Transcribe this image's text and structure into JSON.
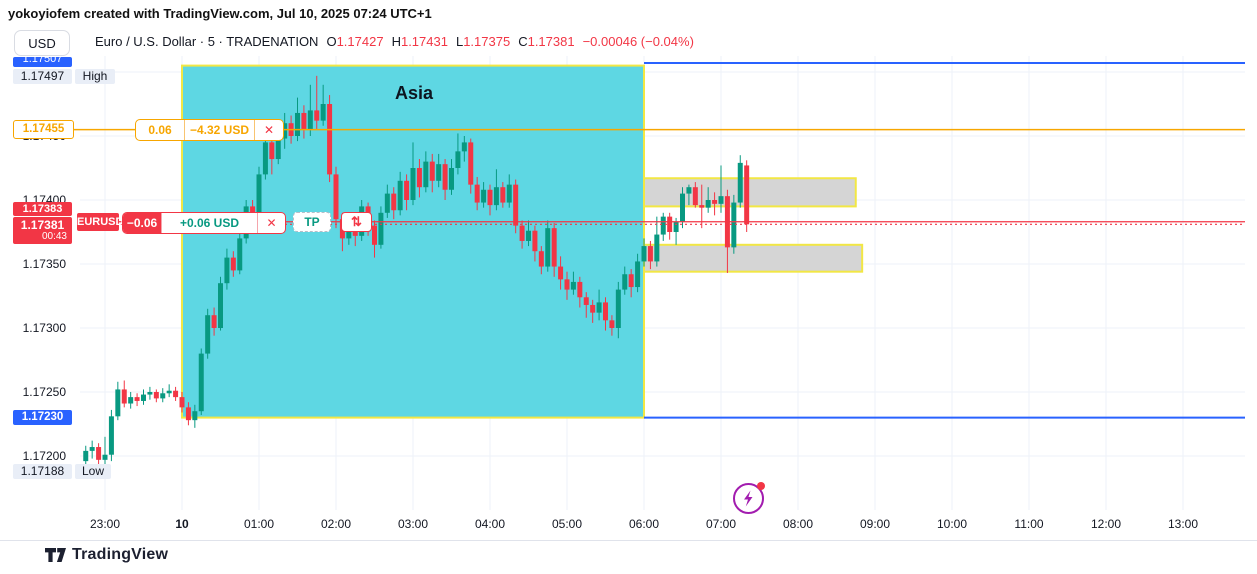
{
  "attribution": "yokoyiofem created with TradingView.com, Jul 10, 2025 07:24 UTC+1",
  "toolbar": {
    "currency_label": "USD"
  },
  "legend": {
    "title": "Euro / U.S. Dollar · 5 · TRADENATION",
    "ohlc": [
      {
        "label": "O",
        "value": "1.17427"
      },
      {
        "label": "H",
        "value": "1.17431"
      },
      {
        "label": "L",
        "value": "1.17375"
      },
      {
        "label": "C",
        "value": "1.17381"
      }
    ],
    "change": "−0.00046 (−0.04%)"
  },
  "price_axis": {
    "labels": [
      {
        "text": "1.17450",
        "price": 1.1745
      },
      {
        "text": "1.17400",
        "price": 1.174
      },
      {
        "text": "1.17350",
        "price": 1.1735
      },
      {
        "text": "1.17300",
        "price": 1.173
      },
      {
        "text": "1.17250",
        "price": 1.1725
      },
      {
        "text": "1.17200",
        "price": 1.172
      }
    ],
    "range_top_badge": "1.17507",
    "high_badge": {
      "price": "1.17497",
      "tag": "High"
    },
    "alert_badge": "1.17455",
    "entry_badge": "1.17383",
    "last_badge": {
      "price": "1.17381",
      "countdown": "00:43"
    },
    "range_bottom_badge": "1.17230",
    "low_badge": {
      "price": "1.17188",
      "tag": "Low"
    }
  },
  "time_axis": {
    "labels": [
      "23:00",
      "10",
      "01:00",
      "02:00",
      "03:00",
      "04:00",
      "05:00",
      "06:00",
      "07:00",
      "08:00",
      "09:00",
      "10:00",
      "11:00",
      "12:00",
      "13:00"
    ]
  },
  "position_tool": {
    "alert_row": {
      "qty": "0.06",
      "pnl": "−4.32 USD",
      "close": "✕",
      "price": 1.17455
    },
    "position_row": {
      "symbol": "EURUSD",
      "qty": "−0.06",
      "pnl": "+0.06 USD",
      "close": "✕",
      "tp_label": "TP",
      "reverse_icon": "⇅",
      "entry_price": 1.17383,
      "last_price": 1.17381
    }
  },
  "drawings": {
    "session_box": {
      "label": "Asia",
      "time_start": "00:00",
      "time_end": "06:00",
      "price_top": 1.17505,
      "price_bottom": 1.1723
    },
    "range_lines": {
      "top_price": 1.17507,
      "bottom_price": 1.1723,
      "time_start": "06:00",
      "time_end": "13:50"
    },
    "zones": [
      {
        "price_top": 1.17417,
        "price_bottom": 1.17395,
        "time_start": "06:00",
        "time_end": "08:45"
      },
      {
        "price_top": 1.17365,
        "price_bottom": 1.17344,
        "time_start": "06:00",
        "time_end": "08:50"
      }
    ]
  },
  "footer": {
    "logo_text": "TradingView"
  },
  "colors": {
    "up": "#089981",
    "down": "#F23645",
    "accent_blue": "#2962FF",
    "orange": "#F7A600",
    "session_fill": "#5ED7E3",
    "zone_border": "#F2E744",
    "gray_zone_fill": "#D5D5D5",
    "grid": "#EEF2F8",
    "magic_purple": "#A21CAF"
  },
  "chart_data": {
    "type": "candlestick",
    "title": "Euro / U.S. Dollar",
    "symbol": "EURUSD",
    "interval_minutes": 5,
    "start_time": "22:45",
    "session_high": 1.17497,
    "session_low": 1.17188,
    "y_axis_range": [
      1.1717,
      1.1752
    ],
    "x_axis_labels": [
      "23:00",
      "10",
      "01:00",
      "02:00",
      "03:00",
      "04:00",
      "05:00",
      "06:00",
      "07:00",
      "08:00",
      "09:00",
      "10:00",
      "11:00",
      "12:00",
      "13:00"
    ],
    "ohlc": [
      [
        1.17196,
        1.17208,
        1.1719,
        1.17204
      ],
      [
        1.17204,
        1.17212,
        1.17198,
        1.17207
      ],
      [
        1.17207,
        1.1721,
        1.17188,
        1.17197
      ],
      [
        1.17197,
        1.17215,
        1.17193,
        1.17201
      ],
      [
        1.17201,
        1.17236,
        1.17196,
        1.17231
      ],
      [
        1.17231,
        1.17258,
        1.17228,
        1.17252
      ],
      [
        1.17252,
        1.17259,
        1.17238,
        1.17241
      ],
      [
        1.17241,
        1.1725,
        1.17237,
        1.17246
      ],
      [
        1.17246,
        1.17249,
        1.17239,
        1.17243
      ],
      [
        1.17243,
        1.17252,
        1.1724,
        1.17248
      ],
      [
        1.17248,
        1.17254,
        1.17244,
        1.1725
      ],
      [
        1.1725,
        1.17252,
        1.17242,
        1.17245
      ],
      [
        1.17245,
        1.17253,
        1.17242,
        1.17249
      ],
      [
        1.17249,
        1.17256,
        1.17246,
        1.17251
      ],
      [
        1.17251,
        1.17254,
        1.17243,
        1.17246
      ],
      [
        1.17246,
        1.1725,
        1.17234,
        1.17238
      ],
      [
        1.17238,
        1.17242,
        1.17224,
        1.17228
      ],
      [
        1.17228,
        1.1724,
        1.17222,
        1.17235
      ],
      [
        1.17235,
        1.17284,
        1.17232,
        1.1728
      ],
      [
        1.1728,
        1.17315,
        1.17276,
        1.1731
      ],
      [
        1.1731,
        1.17316,
        1.17294,
        1.173
      ],
      [
        1.173,
        1.1734,
        1.17298,
        1.17335
      ],
      [
        1.17335,
        1.17362,
        1.1733,
        1.17355
      ],
      [
        1.17355,
        1.1736,
        1.1734,
        1.17345
      ],
      [
        1.17345,
        1.17376,
        1.17342,
        1.1737
      ],
      [
        1.1737,
        1.174,
        1.17366,
        1.17395
      ],
      [
        1.17395,
        1.174,
        1.17378,
        1.17385
      ],
      [
        1.17385,
        1.17426,
        1.17382,
        1.1742
      ],
      [
        1.1742,
        1.17452,
        1.17416,
        1.17445
      ],
      [
        1.17445,
        1.1745,
        1.1742,
        1.17432
      ],
      [
        1.17432,
        1.17455,
        1.17428,
        1.17448
      ],
      [
        1.17448,
        1.17468,
        1.1744,
        1.1746
      ],
      [
        1.1746,
        1.17466,
        1.17444,
        1.1745
      ],
      [
        1.1745,
        1.1748,
        1.17446,
        1.17468
      ],
      [
        1.17468,
        1.17474,
        1.17448,
        1.17455
      ],
      [
        1.17455,
        1.1749,
        1.1745,
        1.1747
      ],
      [
        1.1747,
        1.17497,
        1.17455,
        1.17462
      ],
      [
        1.17462,
        1.1749,
        1.17458,
        1.17475
      ],
      [
        1.17475,
        1.17482,
        1.17414,
        1.1742
      ],
      [
        1.1742,
        1.17426,
        1.17378,
        1.17385
      ],
      [
        1.17385,
        1.1739,
        1.1736,
        1.1737
      ],
      [
        1.1737,
        1.17388,
        1.17365,
        1.17382
      ],
      [
        1.17382,
        1.17386,
        1.17364,
        1.17372
      ],
      [
        1.17372,
        1.174,
        1.17368,
        1.17395
      ],
      [
        1.17395,
        1.17398,
        1.17372,
        1.1738
      ],
      [
        1.1738,
        1.17384,
        1.17355,
        1.17365
      ],
      [
        1.17365,
        1.17395,
        1.17362,
        1.1739
      ],
      [
        1.1739,
        1.17412,
        1.17386,
        1.17405
      ],
      [
        1.17405,
        1.1741,
        1.17385,
        1.17392
      ],
      [
        1.17392,
        1.17422,
        1.17388,
        1.17415
      ],
      [
        1.17415,
        1.1742,
        1.17392,
        1.174
      ],
      [
        1.174,
        1.17445,
        1.17396,
        1.17425
      ],
      [
        1.17425,
        1.17432,
        1.17402,
        1.1741
      ],
      [
        1.1741,
        1.17438,
        1.17406,
        1.1743
      ],
      [
        1.1743,
        1.17436,
        1.17406,
        1.17415
      ],
      [
        1.17415,
        1.17436,
        1.1741,
        1.17428
      ],
      [
        1.17428,
        1.17432,
        1.174,
        1.17408
      ],
      [
        1.17408,
        1.17432,
        1.17404,
        1.17425
      ],
      [
        1.17425,
        1.17452,
        1.1742,
        1.17438
      ],
      [
        1.17438,
        1.1745,
        1.1743,
        1.17445
      ],
      [
        1.17445,
        1.17448,
        1.17405,
        1.17412
      ],
      [
        1.17412,
        1.17418,
        1.17392,
        1.17398
      ],
      [
        1.17398,
        1.17414,
        1.17394,
        1.17408
      ],
      [
        1.17408,
        1.17412,
        1.17388,
        1.17396
      ],
      [
        1.17396,
        1.17424,
        1.17392,
        1.1741
      ],
      [
        1.1741,
        1.17414,
        1.17394,
        1.17398
      ],
      [
        1.17398,
        1.1742,
        1.17394,
        1.17412
      ],
      [
        1.17412,
        1.17416,
        1.17374,
        1.1738
      ],
      [
        1.1738,
        1.17384,
        1.17362,
        1.17368
      ],
      [
        1.17368,
        1.17384,
        1.17364,
        1.17376
      ],
      [
        1.17376,
        1.1738,
        1.17352,
        1.1736
      ],
      [
        1.1736,
        1.17364,
        1.17342,
        1.17348
      ],
      [
        1.17348,
        1.17384,
        1.17344,
        1.17378
      ],
      [
        1.17378,
        1.17382,
        1.1734,
        1.17348
      ],
      [
        1.17348,
        1.17356,
        1.1733,
        1.17338
      ],
      [
        1.17338,
        1.17344,
        1.17322,
        1.1733
      ],
      [
        1.1733,
        1.17344,
        1.17326,
        1.17336
      ],
      [
        1.17336,
        1.1734,
        1.17316,
        1.17324
      ],
      [
        1.17324,
        1.17328,
        1.17308,
        1.17318
      ],
      [
        1.17318,
        1.17322,
        1.17304,
        1.17312
      ],
      [
        1.17312,
        1.1733,
        1.17306,
        1.1732
      ],
      [
        1.1732,
        1.17324,
        1.17298,
        1.17306
      ],
      [
        1.17306,
        1.1731,
        1.17294,
        1.173
      ],
      [
        1.173,
        1.17336,
        1.17292,
        1.1733
      ],
      [
        1.1733,
        1.17348,
        1.17326,
        1.17342
      ],
      [
        1.17342,
        1.17346,
        1.17324,
        1.17332
      ],
      [
        1.17332,
        1.17358,
        1.17328,
        1.17352
      ],
      [
        1.17352,
        1.1737,
        1.17348,
        1.17364
      ],
      [
        1.17364,
        1.17368,
        1.17346,
        1.17352
      ],
      [
        1.17352,
        1.17387,
        1.17348,
        1.17373
      ],
      [
        1.17373,
        1.1739,
        1.17368,
        1.17387
      ],
      [
        1.17387,
        1.1739,
        1.17369,
        1.17375
      ],
      [
        1.17375,
        1.17386,
        1.17365,
        1.17383
      ],
      [
        1.17383,
        1.1741,
        1.17378,
        1.17405
      ],
      [
        1.17405,
        1.17412,
        1.17396,
        1.1741
      ],
      [
        1.1741,
        1.17414,
        1.17394,
        1.17396
      ],
      [
        1.17396,
        1.17412,
        1.17378,
        1.17394
      ],
      [
        1.17394,
        1.1741,
        1.1739,
        1.174
      ],
      [
        1.174,
        1.17406,
        1.17388,
        1.17397
      ],
      [
        1.17397,
        1.17427,
        1.1739,
        1.17403
      ],
      [
        1.17403,
        1.17408,
        1.17343,
        1.17363
      ],
      [
        1.17363,
        1.17404,
        1.17358,
        1.17398
      ],
      [
        1.17398,
        1.17435,
        1.17394,
        1.17429
      ],
      [
        1.17427,
        1.17431,
        1.17375,
        1.17381
      ]
    ]
  }
}
